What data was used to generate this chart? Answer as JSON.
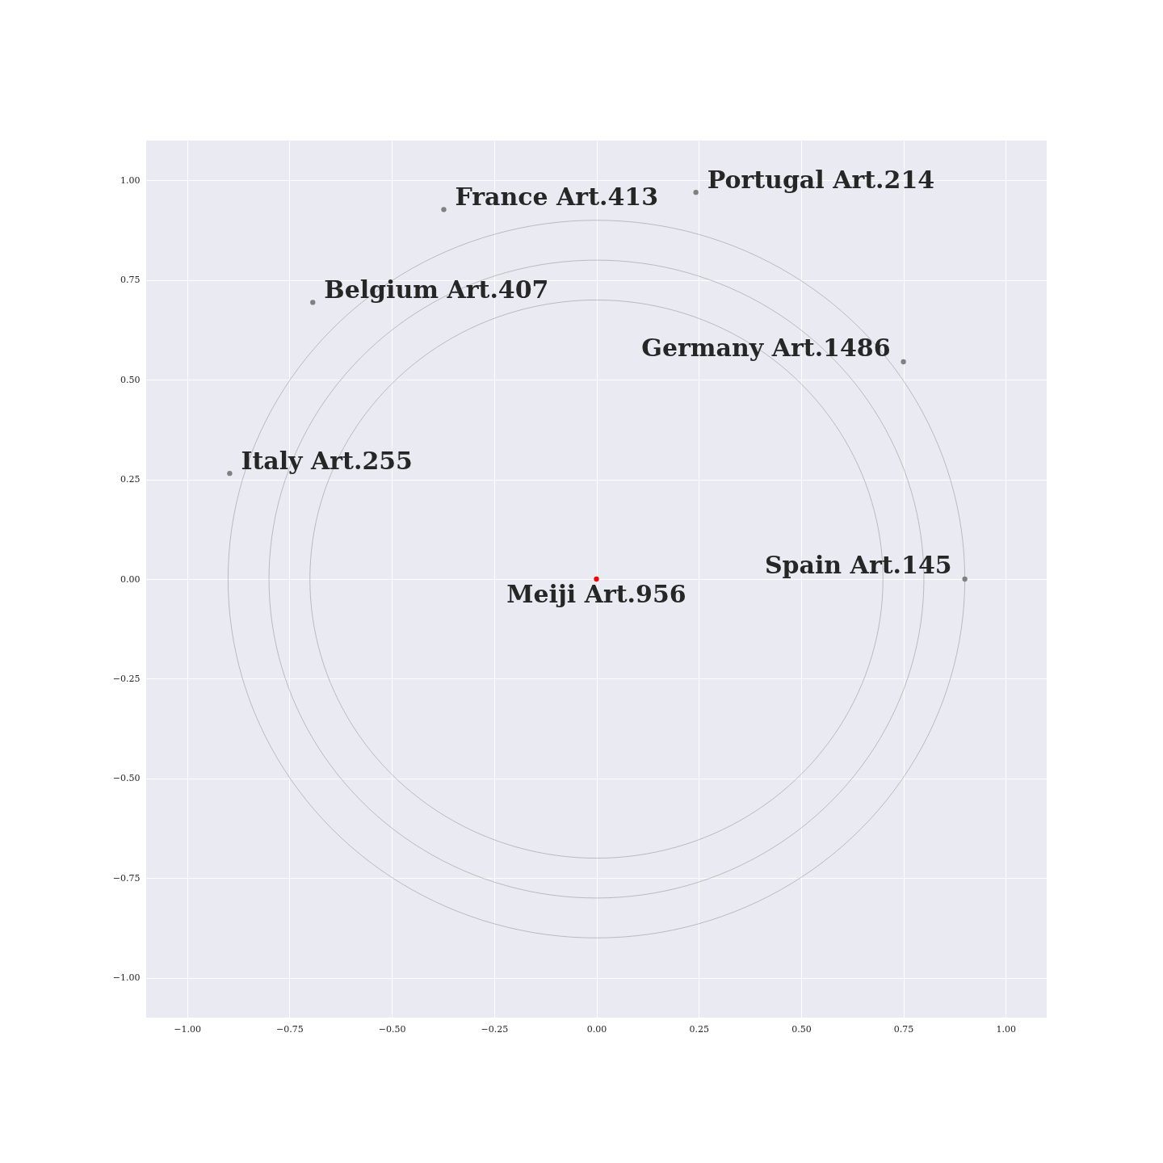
{
  "chart_data": {
    "type": "scatter",
    "xlim": [
      -1.1,
      1.1
    ],
    "ylim": [
      -1.1,
      1.1
    ],
    "xticks": [
      {
        "value": -1,
        "label": "−1.00"
      },
      {
        "value": -0.75,
        "label": "−0.75"
      },
      {
        "value": -0.5,
        "label": "−0.50"
      },
      {
        "value": -0.25,
        "label": "−0.25"
      },
      {
        "value": 0,
        "label": "0.00"
      },
      {
        "value": 0.25,
        "label": "0.25"
      },
      {
        "value": 0.5,
        "label": "0.50"
      },
      {
        "value": 0.75,
        "label": "0.75"
      },
      {
        "value": 1,
        "label": "1.00"
      }
    ],
    "yticks": [
      {
        "value": -1,
        "label": "−1.00"
      },
      {
        "value": -0.75,
        "label": "−0.75"
      },
      {
        "value": -0.5,
        "label": "−0.50"
      },
      {
        "value": -0.25,
        "label": "−0.25"
      },
      {
        "value": 0,
        "label": "0.00"
      },
      {
        "value": 0.25,
        "label": "0.25"
      },
      {
        "value": 0.5,
        "label": "0.50"
      },
      {
        "value": 0.75,
        "label": "0.75"
      },
      {
        "value": 1,
        "label": "1.00"
      }
    ],
    "grid": true,
    "series": [
      {
        "marker": "circle",
        "x": [
          0,
          0.9,
          0.75,
          0.243,
          -0.373,
          -0.693,
          -0.896
        ],
        "values": [
          0,
          0,
          0.545,
          0.97,
          0.927,
          0.694,
          0.265
        ],
        "colors": [
          "#ff0000",
          "#808080",
          "#808080",
          "#808080",
          "#808080",
          "#808080",
          "#808080"
        ]
      }
    ],
    "annotations": [
      {
        "text": "Meiji Art.956",
        "x": 0,
        "y": 0
      },
      {
        "text": "Spain Art.145",
        "x": 0.9,
        "y": 0
      },
      {
        "text": "Germany Art.1486",
        "x": 0.75,
        "y": 0.545
      },
      {
        "text": "Portugal Art.214",
        "x": 0.243,
        "y": 0.97
      },
      {
        "text": "France Art.413",
        "x": -0.373,
        "y": 0.927
      },
      {
        "text": "Belgium Art.407",
        "x": -0.693,
        "y": 0.694
      },
      {
        "text": "Italy Art.255",
        "x": -0.896,
        "y": 0.265
      }
    ]
  }
}
